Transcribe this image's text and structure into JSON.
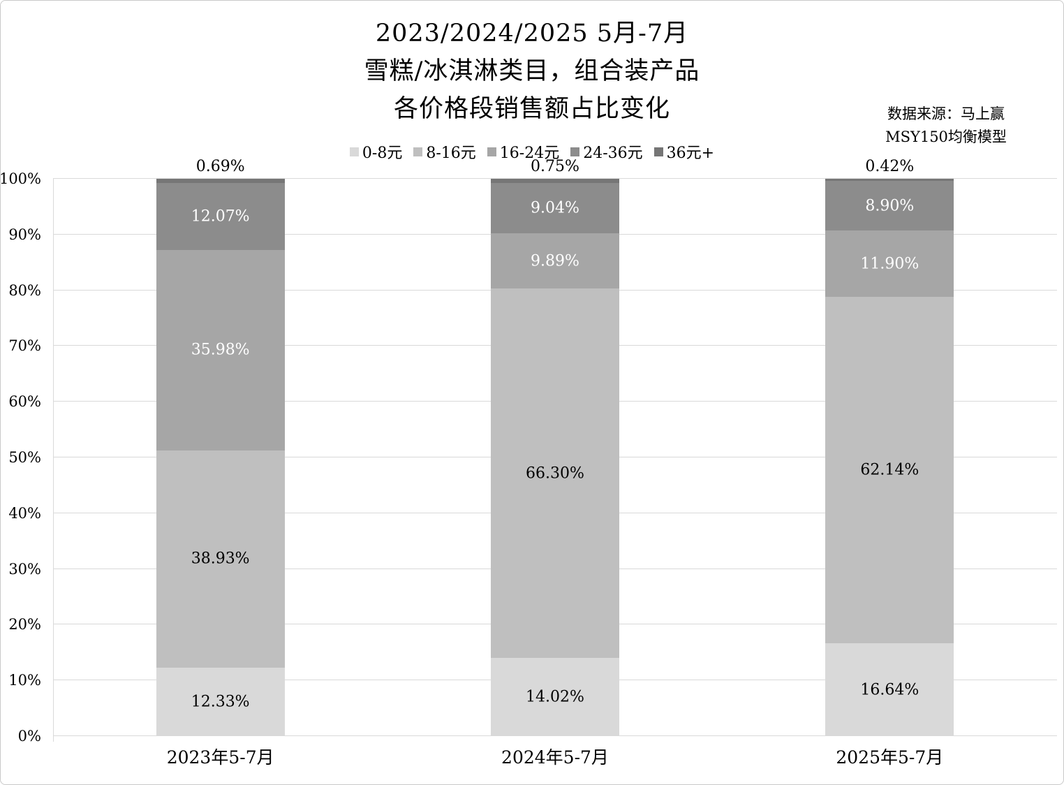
{
  "title": {
    "lines": [
      "2023/2024/2025 5月-7月",
      "雪糕/冰淇淋类目，组合装产品",
      "各价格段销售额占比变化"
    ]
  },
  "source": {
    "lines": [
      "数据来源：马上赢",
      "MSY150均衡模型"
    ]
  },
  "chart_data": {
    "type": "bar",
    "subtype": "stacked-percent-column",
    "title": "2023/2024/2025 5月-7月 雪糕/冰淇淋类目，组合装产品 各价格段销售额占比变化",
    "categories": [
      "2023年5-7月",
      "2024年5-7月",
      "2025年5-7月"
    ],
    "series": [
      {
        "name": "0-8元",
        "color": "#d9d9d9",
        "label_color": "#000000",
        "values": [
          12.33,
          14.02,
          16.64
        ]
      },
      {
        "name": "8-16元",
        "color": "#bfbfbf",
        "label_color": "#000000",
        "values": [
          38.93,
          66.3,
          62.14
        ]
      },
      {
        "name": "16-24元",
        "color": "#a6a6a6",
        "label_color": "#ffffff",
        "values": [
          35.98,
          9.89,
          11.9
        ]
      },
      {
        "name": "24-36元",
        "color": "#8c8c8c",
        "label_color": "#ffffff",
        "values": [
          12.07,
          9.04,
          8.9
        ]
      },
      {
        "name": "36元+",
        "color": "#767676",
        "label_color": "#000000",
        "values": [
          0.69,
          0.75,
          0.42
        ]
      }
    ],
    "y_ticks": [
      "0%",
      "10%",
      "20%",
      "30%",
      "40%",
      "50%",
      "60%",
      "70%",
      "80%",
      "90%",
      "100%"
    ],
    "ylim": [
      0,
      100
    ],
    "grid": true,
    "legend_position": "top",
    "gridline_color": "#d9d9d9",
    "label_format": "0.00%"
  }
}
